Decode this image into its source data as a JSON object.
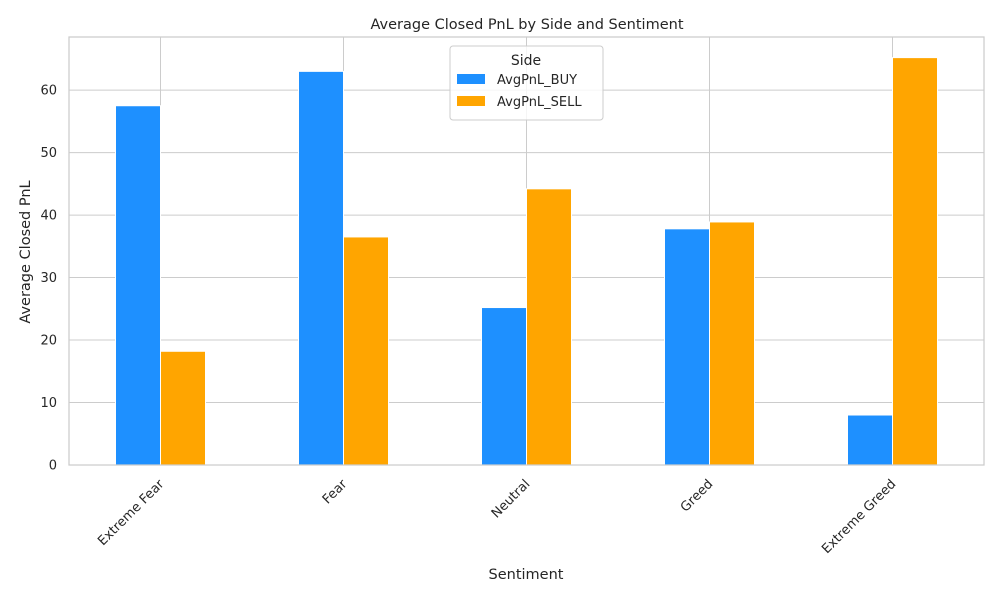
{
  "chart_data": {
    "type": "bar",
    "title": "Average Closed PnL by Side and Sentiment",
    "xlabel": "Sentiment",
    "ylabel": "Average Closed PnL",
    "categories": [
      "Extreme Fear",
      "Fear",
      "Neutral",
      "Greed",
      "Extreme Greed"
    ],
    "series": [
      {
        "name": "AvgPnL_BUY",
        "color": "#1e90ff",
        "values": [
          57.5,
          63.0,
          25.2,
          37.8,
          8.0
        ]
      },
      {
        "name": "AvgPnL_SELL",
        "color": "#ffa500",
        "values": [
          18.2,
          36.5,
          44.2,
          38.9,
          65.2
        ]
      }
    ],
    "ylim": [
      0,
      68.5
    ],
    "yticks": [
      0,
      10,
      20,
      30,
      40,
      50,
      60
    ],
    "grid": true,
    "legend": {
      "title": "Side",
      "placement": "top-center"
    }
  }
}
